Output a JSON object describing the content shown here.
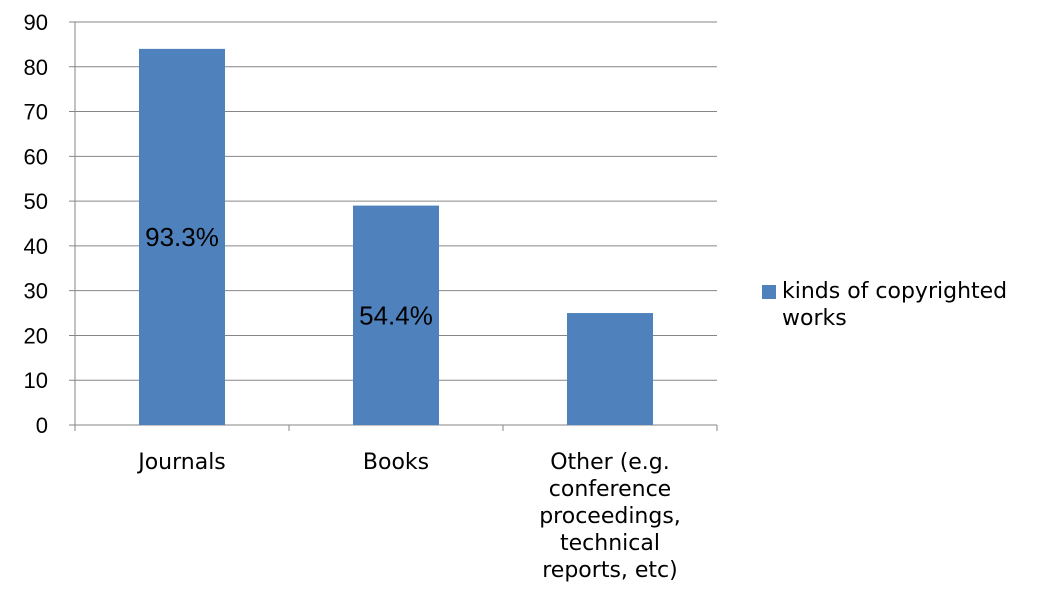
{
  "colors": {
    "bar": "#4f81bd",
    "grid": "#868686",
    "axis": "#868686"
  },
  "chart_data": {
    "type": "bar",
    "categories": [
      [
        "Journals"
      ],
      [
        "Books"
      ],
      [
        "Other (e.g.",
        "conference",
        "proceedings,",
        "technical",
        "reports, etc)"
      ]
    ],
    "series": [
      {
        "name": "kinds of copyrighted works",
        "values": [
          84,
          49,
          25
        ]
      }
    ],
    "data_labels": [
      "93.3%",
      "54.4%",
      ""
    ],
    "ylim": [
      0,
      90
    ],
    "yticks": [
      0,
      10,
      20,
      30,
      40,
      50,
      60,
      70,
      80,
      90
    ],
    "grid": true,
    "legend_position": "right"
  }
}
